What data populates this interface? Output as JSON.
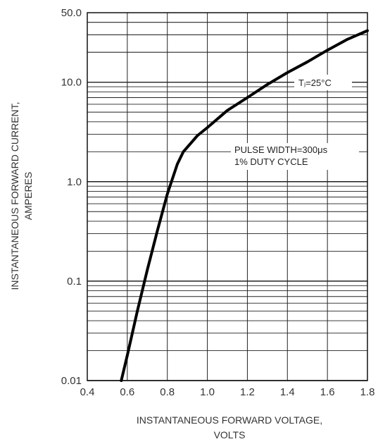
{
  "chart_data": {
    "type": "line",
    "xlabel_line1": "INSTANTANEOUS FORWARD VOLTAGE,",
    "xlabel_line2": "VOLTS",
    "ylabel_line1": "INSTANTANEOUS FORWARD CURRENT,",
    "ylabel_line2": "AMPERES",
    "xlim": [
      0.4,
      1.8
    ],
    "ylim": [
      0.01,
      50
    ],
    "yscale": "log",
    "grid": true,
    "x_ticks": [
      0.4,
      0.6,
      0.8,
      1.0,
      1.2,
      1.4,
      1.6,
      1.8
    ],
    "x_tick_labels": [
      "0.4",
      "0.6",
      "0.8",
      "1.0",
      "1.2",
      "1.4",
      "1.6",
      "1.8"
    ],
    "y_ticks": [
      0.01,
      0.1,
      1,
      10,
      50
    ],
    "y_tick_labels": [
      "0.01",
      "0.1",
      "1.0",
      "10.0",
      "50.0"
    ],
    "annotation_temp": "Tⱼ=25°C",
    "annotation_pulse_line1": "PULSE WIDTH=300μs",
    "annotation_pulse_line2": "1% DUTY CYCLE",
    "series": [
      {
        "x": [
          0.57,
          0.6,
          0.65,
          0.7,
          0.75,
          0.8,
          0.85,
          0.88,
          0.95,
          1.0,
          1.1,
          1.2,
          1.3,
          1.4,
          1.5,
          1.6,
          1.7,
          1.8
        ],
        "y": [
          0.01,
          0.018,
          0.05,
          0.13,
          0.32,
          0.75,
          1.5,
          2.0,
          2.9,
          3.5,
          5.2,
          7.0,
          9.5,
          12.5,
          16.0,
          21.0,
          27.0,
          33.0
        ]
      }
    ]
  }
}
